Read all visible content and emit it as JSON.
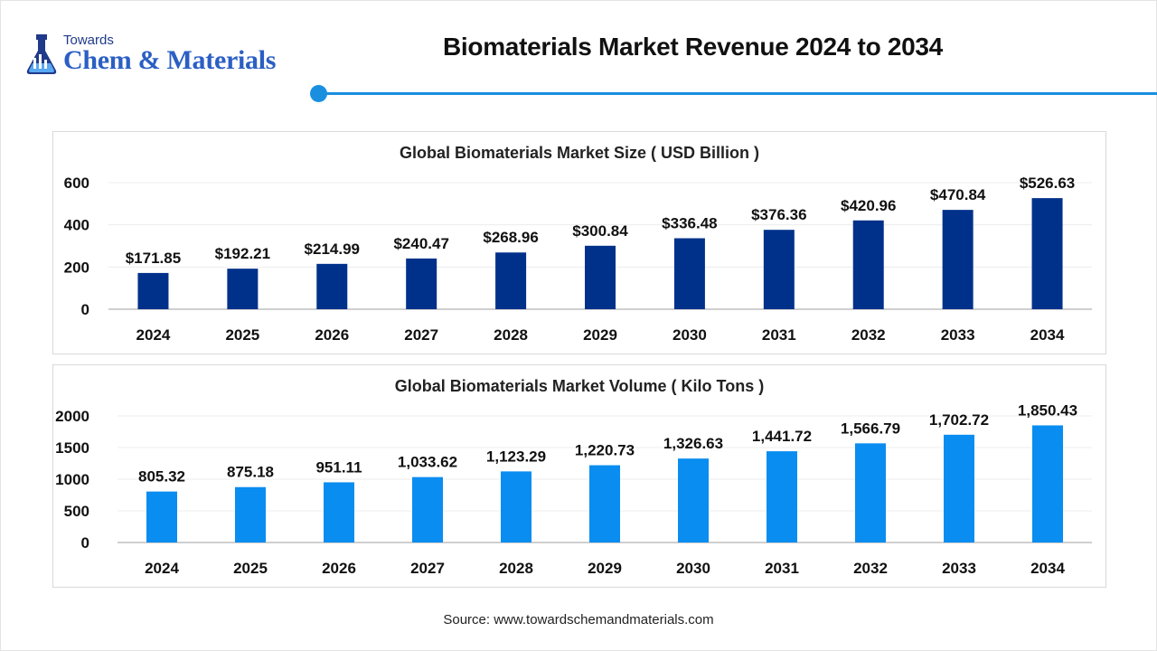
{
  "header": {
    "logo_small": "Towards",
    "logo_main": "Chem & Materials",
    "title": "Biomaterials Market Revenue 2024 to 2034",
    "accent_color": "#1a8fe0"
  },
  "chart_data": [
    {
      "type": "bar",
      "title": "Global Biomaterials Market Size ( USD Billion )",
      "categories": [
        "2024",
        "2025",
        "2026",
        "2027",
        "2028",
        "2029",
        "2030",
        "2031",
        "2032",
        "2033",
        "2034"
      ],
      "values": [
        171.85,
        192.21,
        214.99,
        240.47,
        268.96,
        300.84,
        336.48,
        376.36,
        420.96,
        470.84,
        526.63
      ],
      "data_labels": [
        "$171.85",
        "$192.21",
        "$214.99",
        "$240.47",
        "$268.96",
        "$300.84",
        "$336.48",
        "$376.36",
        "$420.96",
        "$470.84",
        "$526.63"
      ],
      "yticks": [
        "0",
        "200",
        "400",
        "600"
      ],
      "ylim": [
        0,
        600
      ],
      "color": "#00318a",
      "grid": true,
      "legend": "none"
    },
    {
      "type": "bar",
      "title": "Global Biomaterials Market Volume ( Kilo Tons )",
      "categories": [
        "2024",
        "2025",
        "2026",
        "2027",
        "2028",
        "2029",
        "2030",
        "2031",
        "2032",
        "2033",
        "2034"
      ],
      "values": [
        805.32,
        875.18,
        951.11,
        1033.62,
        1123.29,
        1220.73,
        1326.63,
        1441.72,
        1566.79,
        1702.72,
        1850.43
      ],
      "data_labels": [
        "805.32",
        "875.18",
        "951.11",
        "1,033.62",
        "1,123.29",
        "1,220.73",
        "1,326.63",
        "1,441.72",
        "1,566.79",
        "1,702.72",
        "1,850.43"
      ],
      "yticks": [
        "0",
        "500",
        "1000",
        "1500",
        "2000"
      ],
      "ylim": [
        0,
        2000
      ],
      "color": "#0a8df0",
      "grid": true,
      "legend": "none"
    }
  ],
  "footer": {
    "source": "Source: www.towardschemandmaterials.com"
  }
}
